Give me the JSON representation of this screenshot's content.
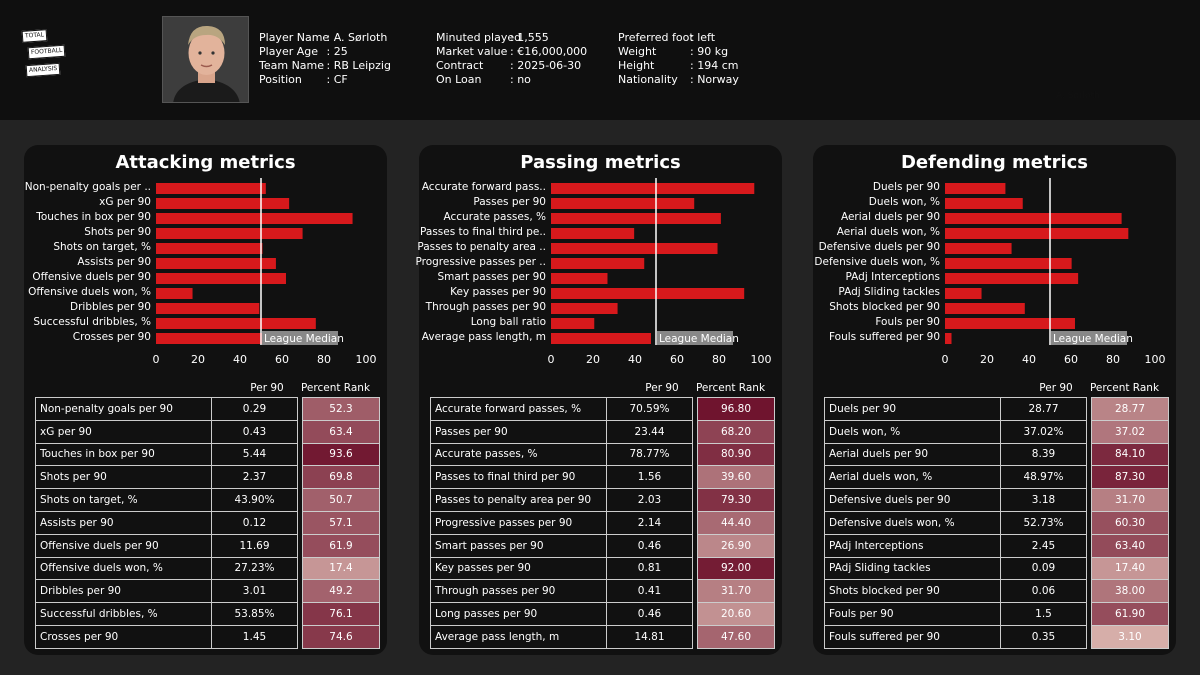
{
  "header": {
    "logo_lines": [
      "TOTAL",
      "FOOTBALL",
      "ANALYSIS"
    ],
    "col1": [
      {
        "k": "Player Name",
        "v": "A. Sørloth"
      },
      {
        "k": "Player Age",
        "v": "25"
      },
      {
        "k": "Team Name",
        "v": "RB Leipzig"
      },
      {
        "k": "Position",
        "v": "CF"
      }
    ],
    "col2": [
      {
        "k": "Minuted played",
        "v": "1,555"
      },
      {
        "k": "Market value",
        "v": "€16,000,000"
      },
      {
        "k": "Contract",
        "v": "2025-06-30"
      },
      {
        "k": "On Loan",
        "v": "no"
      }
    ],
    "col3": [
      {
        "k": "Preferred foot",
        "v": "left"
      },
      {
        "k": "Weight",
        "v": "90 kg"
      },
      {
        "k": "Height",
        "v": "194 cm"
      },
      {
        "k": "Nationality",
        "v": "Norway"
      }
    ],
    "watermark": "A. Sørloth"
  },
  "colors": {
    "bar": "#d7191c",
    "median_line": "#ffffff",
    "median_box": "#888888",
    "pr_low": "#d9b3ad",
    "pr_high": "#6b0f2a"
  },
  "table_headers": {
    "per90": "Per 90",
    "rank": "Percent Rank"
  },
  "median_label": "League Median",
  "chart_data": [
    {
      "type": "bar",
      "title": "Attacking metrics",
      "xlim": [
        0,
        100
      ],
      "xticks": [
        "0",
        "20",
        "40",
        "60",
        "80",
        "100"
      ],
      "median": 50,
      "categories": [
        "Non-penalty goals per ..",
        "xG per 90",
        "Touches in box per 90",
        "Shots per 90",
        "Shots on target, %",
        "Assists per 90",
        "Offensive duels per 90",
        "Offensive duels won, %",
        "Dribbles per 90",
        "Successful dribbles, %",
        "Crosses per 90"
      ],
      "values": [
        52.3,
        63.4,
        93.6,
        69.8,
        50.7,
        57.1,
        61.9,
        17.4,
        49.2,
        76.1,
        74.6
      ],
      "table": [
        [
          "Non-penalty goals per 90",
          "0.29",
          "52.3"
        ],
        [
          "xG per 90",
          "0.43",
          "63.4"
        ],
        [
          "Touches in box per 90",
          "5.44",
          "93.6"
        ],
        [
          "Shots per 90",
          "2.37",
          "69.8"
        ],
        [
          "Shots on target, %",
          "43.90%",
          "50.7"
        ],
        [
          "Assists per 90",
          "0.12",
          "57.1"
        ],
        [
          "Offensive duels per 90",
          "11.69",
          "61.9"
        ],
        [
          "Offensive duels won, %",
          "27.23%",
          "17.4"
        ],
        [
          "Dribbles per 90",
          "3.01",
          "49.2"
        ],
        [
          "Successful dribbles, %",
          "53.85%",
          "76.1"
        ],
        [
          "Crosses per 90",
          "1.45",
          "74.6"
        ]
      ]
    },
    {
      "type": "bar",
      "title": "Passing metrics",
      "xlim": [
        0,
        100
      ],
      "xticks": [
        "0",
        "20",
        "40",
        "60",
        "80",
        "100"
      ],
      "median": 50,
      "categories": [
        "Accurate forward pass..",
        "Passes per 90",
        "Accurate passes, %",
        "Passes to final third pe..",
        "Passes to penalty area ..",
        "Progressive passes per ..",
        "Smart passes per 90",
        "Key passes per 90",
        "Through passes per 90",
        "Long ball ratio",
        "Average pass length, m"
      ],
      "values": [
        96.8,
        68.2,
        80.9,
        39.6,
        79.3,
        44.4,
        26.9,
        92.0,
        31.7,
        20.6,
        47.6
      ],
      "table": [
        [
          "Accurate forward passes, %",
          "70.59%",
          "96.80"
        ],
        [
          "Passes per 90",
          "23.44",
          "68.20"
        ],
        [
          "Accurate passes, %",
          "78.77%",
          "80.90"
        ],
        [
          "Passes to final third per 90",
          "1.56",
          "39.60"
        ],
        [
          "Passes to penalty area per 90",
          "2.03",
          "79.30"
        ],
        [
          "Progressive passes per 90",
          "2.14",
          "44.40"
        ],
        [
          "Smart passes per 90",
          "0.46",
          "26.90"
        ],
        [
          "Key passes per 90",
          "0.81",
          "92.00"
        ],
        [
          "Through passes per 90",
          "0.41",
          "31.70"
        ],
        [
          "Long passes per 90",
          "0.46",
          "20.60"
        ],
        [
          "Average pass length, m",
          "14.81",
          "47.60"
        ]
      ]
    },
    {
      "type": "bar",
      "title": "Defending metrics",
      "xlim": [
        0,
        100
      ],
      "xticks": [
        "0",
        "20",
        "40",
        "60",
        "80",
        "100"
      ],
      "median": 50,
      "categories": [
        "Duels per 90",
        "Duels won, %",
        "Aerial duels per 90",
        "Aerial duels won, %",
        "Defensive duels per 90",
        "Defensive duels won, %",
        "PAdj Interceptions",
        "PAdj Sliding tackles",
        "Shots blocked per 90",
        "Fouls per 90",
        "Fouls suffered per 90"
      ],
      "values": [
        28.77,
        37.02,
        84.1,
        87.3,
        31.7,
        60.3,
        63.4,
        17.4,
        38.0,
        61.9,
        3.1
      ],
      "table": [
        [
          "Duels per 90",
          "28.77",
          "28.77"
        ],
        [
          "Duels won, %",
          "37.02%",
          "37.02"
        ],
        [
          "Aerial duels per 90",
          "8.39",
          "84.10"
        ],
        [
          "Aerial duels won, %",
          "48.97%",
          "87.30"
        ],
        [
          "Defensive duels per 90",
          "3.18",
          "31.70"
        ],
        [
          "Defensive duels won, %",
          "52.73%",
          "60.30"
        ],
        [
          "PAdj Interceptions",
          "2.45",
          "63.40"
        ],
        [
          "PAdj Sliding tackles",
          "0.09",
          "17.40"
        ],
        [
          "Shots blocked per 90",
          "0.06",
          "38.00"
        ],
        [
          "Fouls per 90",
          "1.5",
          "61.90"
        ],
        [
          "Fouls suffered per 90",
          "0.35",
          "3.10"
        ]
      ]
    }
  ]
}
